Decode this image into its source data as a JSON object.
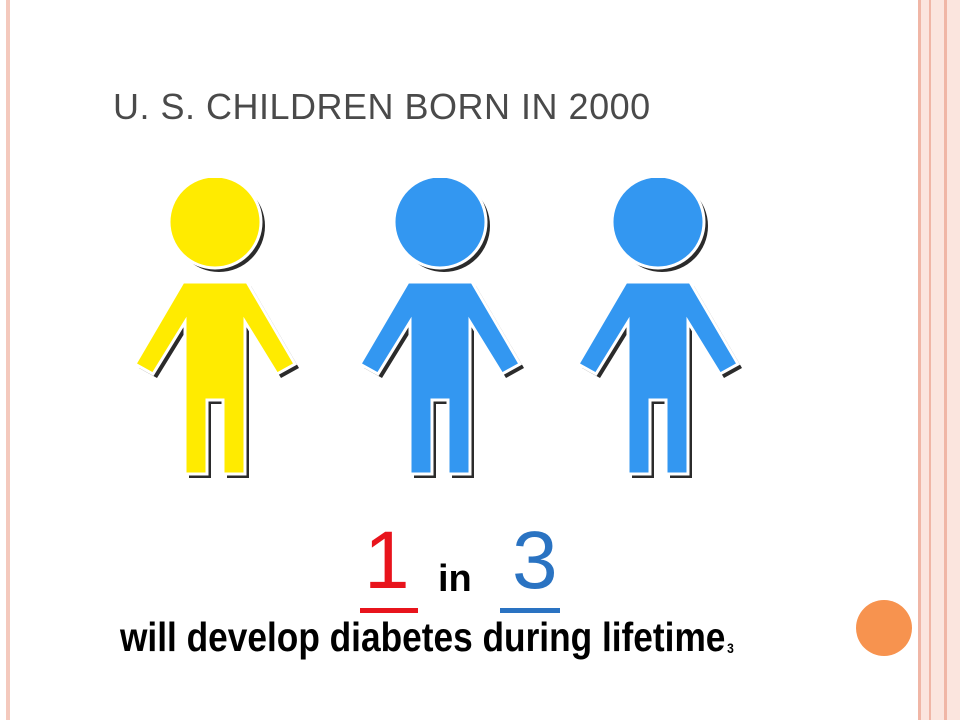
{
  "title": "U. S. CHILDREN BORN IN 2000",
  "figures": [
    {
      "name": "child-figure-1",
      "color": "#ffeb00"
    },
    {
      "name": "child-figure-2",
      "color": "#3397f1"
    },
    {
      "name": "child-figure-3",
      "color": "#3397f1"
    }
  ],
  "ratio": {
    "numerator": "1",
    "word": "in",
    "denominator": "3",
    "numerator_color": "#e8141c",
    "denominator_color": "#2a73c2"
  },
  "caption": {
    "text": "will develop diabetes during lifetime",
    "footnote": "3"
  },
  "accent_dot_color": "#f7934f"
}
